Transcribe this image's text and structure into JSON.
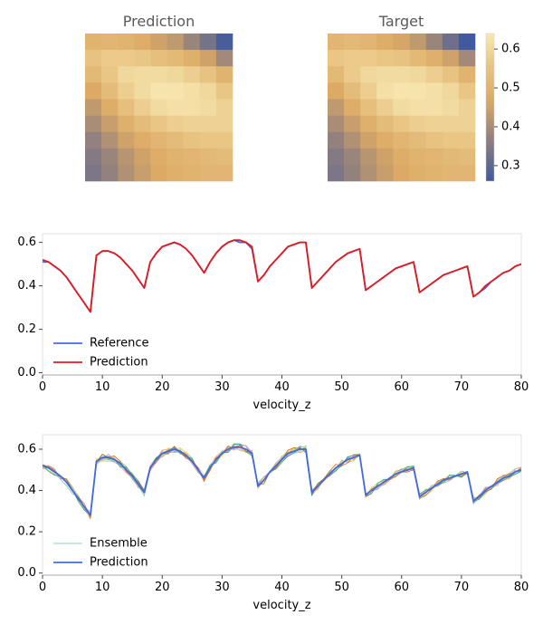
{
  "chart_data": [
    {
      "type": "heatmap",
      "title": "Prediction",
      "rows": 9,
      "cols": 9,
      "values": [
        [
          0.5,
          0.51,
          0.5,
          0.48,
          0.45,
          0.43,
          0.38,
          0.33,
          0.27
        ],
        [
          0.55,
          0.57,
          0.57,
          0.56,
          0.54,
          0.52,
          0.49,
          0.45,
          0.39
        ],
        [
          0.52,
          0.56,
          0.6,
          0.61,
          0.61,
          0.6,
          0.58,
          0.55,
          0.5
        ],
        [
          0.47,
          0.53,
          0.58,
          0.61,
          0.63,
          0.63,
          0.62,
          0.6,
          0.56
        ],
        [
          0.43,
          0.48,
          0.54,
          0.58,
          0.61,
          0.62,
          0.62,
          0.61,
          0.59
        ],
        [
          0.4,
          0.44,
          0.49,
          0.53,
          0.56,
          0.58,
          0.59,
          0.59,
          0.59
        ],
        [
          0.37,
          0.41,
          0.45,
          0.48,
          0.51,
          0.53,
          0.55,
          0.56,
          0.56
        ],
        [
          0.35,
          0.38,
          0.42,
          0.45,
          0.48,
          0.5,
          0.51,
          0.52,
          0.53
        ],
        [
          0.34,
          0.37,
          0.41,
          0.44,
          0.47,
          0.49,
          0.5,
          0.51,
          0.51
        ]
      ]
    },
    {
      "type": "heatmap",
      "title": "Target",
      "rows": 9,
      "cols": 9,
      "values": [
        [
          0.51,
          0.52,
          0.51,
          0.48,
          0.46,
          0.43,
          0.38,
          0.32,
          0.26
        ],
        [
          0.56,
          0.57,
          0.57,
          0.56,
          0.55,
          0.52,
          0.49,
          0.45,
          0.39
        ],
        [
          0.52,
          0.57,
          0.6,
          0.61,
          0.61,
          0.6,
          0.58,
          0.55,
          0.5
        ],
        [
          0.47,
          0.53,
          0.58,
          0.62,
          0.63,
          0.63,
          0.62,
          0.6,
          0.56
        ],
        [
          0.43,
          0.48,
          0.54,
          0.58,
          0.61,
          0.62,
          0.62,
          0.61,
          0.59
        ],
        [
          0.4,
          0.44,
          0.49,
          0.53,
          0.56,
          0.58,
          0.59,
          0.59,
          0.59
        ],
        [
          0.37,
          0.41,
          0.45,
          0.48,
          0.51,
          0.53,
          0.55,
          0.56,
          0.56
        ],
        [
          0.35,
          0.38,
          0.42,
          0.45,
          0.48,
          0.5,
          0.51,
          0.52,
          0.53
        ],
        [
          0.34,
          0.37,
          0.41,
          0.44,
          0.47,
          0.49,
          0.5,
          0.51,
          0.51
        ]
      ],
      "colorbar": {
        "range": [
          0.26,
          0.64
        ],
        "ticks": [
          0.3,
          0.4,
          0.5,
          0.6
        ]
      }
    },
    {
      "type": "line",
      "xlabel": "velocity_z",
      "xlim": [
        0,
        80
      ],
      "ylim": [
        -0.01,
        0.64
      ],
      "xticks": [
        0,
        10,
        20,
        30,
        40,
        50,
        60,
        70,
        80
      ],
      "yticks": [
        0.0,
        0.2,
        0.4,
        0.6
      ],
      "legend": "lower-left",
      "series": [
        {
          "name": "Reference",
          "color": "#4169e1",
          "x": [
            0,
            1,
            2,
            3,
            4,
            5,
            6,
            7,
            8,
            9,
            10,
            11,
            12,
            13,
            14,
            15,
            16,
            17,
            18,
            19,
            20,
            21,
            22,
            23,
            24,
            25,
            26,
            27,
            28,
            29,
            30,
            31,
            32,
            33,
            34,
            35,
            36,
            37,
            38,
            39,
            40,
            41,
            42,
            43,
            44,
            45,
            46,
            47,
            48,
            49,
            50,
            51,
            52,
            53,
            54,
            55,
            56,
            57,
            58,
            59,
            60,
            61,
            62,
            63,
            64,
            65,
            66,
            67,
            68,
            69,
            70,
            71,
            72,
            73,
            74,
            75,
            76,
            77,
            78,
            79,
            80
          ],
          "y": [
            0.51,
            0.51,
            0.49,
            0.47,
            0.44,
            0.4,
            0.36,
            0.32,
            0.28,
            0.54,
            0.56,
            0.56,
            0.55,
            0.53,
            0.5,
            0.47,
            0.43,
            0.39,
            0.51,
            0.55,
            0.58,
            0.59,
            0.6,
            0.59,
            0.57,
            0.54,
            0.5,
            0.46,
            0.51,
            0.55,
            0.58,
            0.6,
            0.61,
            0.6,
            0.6,
            0.57,
            0.42,
            0.45,
            0.49,
            0.52,
            0.55,
            0.58,
            0.59,
            0.6,
            0.6,
            0.39,
            0.42,
            0.45,
            0.48,
            0.51,
            0.53,
            0.55,
            0.56,
            0.57,
            0.38,
            0.4,
            0.42,
            0.44,
            0.46,
            0.48,
            0.49,
            0.5,
            0.51,
            0.37,
            0.39,
            0.41,
            0.43,
            0.45,
            0.46,
            0.47,
            0.48,
            0.49,
            0.35,
            0.37,
            0.39,
            0.42,
            0.44,
            0.46,
            0.47,
            0.49,
            0.5
          ]
        },
        {
          "name": "Prediction",
          "color": "#e31a1c",
          "x": [
            0,
            1,
            2,
            3,
            4,
            5,
            6,
            7,
            8,
            9,
            10,
            11,
            12,
            13,
            14,
            15,
            16,
            17,
            18,
            19,
            20,
            21,
            22,
            23,
            24,
            25,
            26,
            27,
            28,
            29,
            30,
            31,
            32,
            33,
            34,
            35,
            36,
            37,
            38,
            39,
            40,
            41,
            42,
            43,
            44,
            45,
            46,
            47,
            48,
            49,
            50,
            51,
            52,
            53,
            54,
            55,
            56,
            57,
            58,
            59,
            60,
            61,
            62,
            63,
            64,
            65,
            66,
            67,
            68,
            69,
            70,
            71,
            72,
            73,
            74,
            75,
            76,
            77,
            78,
            79,
            80
          ],
          "y": [
            0.52,
            0.51,
            0.49,
            0.47,
            0.44,
            0.4,
            0.36,
            0.32,
            0.28,
            0.54,
            0.56,
            0.56,
            0.55,
            0.53,
            0.5,
            0.47,
            0.43,
            0.39,
            0.51,
            0.55,
            0.58,
            0.59,
            0.6,
            0.59,
            0.57,
            0.54,
            0.5,
            0.46,
            0.51,
            0.55,
            0.58,
            0.6,
            0.61,
            0.61,
            0.6,
            0.58,
            0.42,
            0.45,
            0.49,
            0.52,
            0.55,
            0.58,
            0.59,
            0.6,
            0.6,
            0.39,
            0.42,
            0.45,
            0.48,
            0.51,
            0.53,
            0.55,
            0.56,
            0.57,
            0.38,
            0.4,
            0.42,
            0.44,
            0.46,
            0.48,
            0.49,
            0.5,
            0.51,
            0.37,
            0.39,
            0.41,
            0.43,
            0.45,
            0.46,
            0.47,
            0.48,
            0.49,
            0.35,
            0.37,
            0.4,
            0.42,
            0.44,
            0.46,
            0.47,
            0.49,
            0.5
          ]
        }
      ]
    },
    {
      "type": "line",
      "xlabel": "velocity_z",
      "xlim": [
        0,
        80
      ],
      "ylim": [
        -0.01,
        0.67
      ],
      "xticks": [
        0,
        10,
        20,
        30,
        40,
        50,
        60,
        70,
        80
      ],
      "yticks": [
        0.0,
        0.2,
        0.4,
        0.6
      ],
      "legend": "lower-left",
      "ensemble": {
        "name": "Ensemble",
        "members": 10,
        "colors": [
          "#66c2a5",
          "#fc8d62",
          "#8da0cb",
          "#e78ac3",
          "#a6d854",
          "#ffd92f",
          "#e5c494",
          "#b3b3b3",
          "#1b9e77",
          "#d95f02"
        ]
      },
      "series": [
        {
          "name": "Prediction",
          "color": "#4169e1",
          "x": [
            0,
            1,
            2,
            3,
            4,
            5,
            6,
            7,
            8,
            9,
            10,
            11,
            12,
            13,
            14,
            15,
            16,
            17,
            18,
            19,
            20,
            21,
            22,
            23,
            24,
            25,
            26,
            27,
            28,
            29,
            30,
            31,
            32,
            33,
            34,
            35,
            36,
            37,
            38,
            39,
            40,
            41,
            42,
            43,
            44,
            45,
            46,
            47,
            48,
            49,
            50,
            51,
            52,
            53,
            54,
            55,
            56,
            57,
            58,
            59,
            60,
            61,
            62,
            63,
            64,
            65,
            66,
            67,
            68,
            69,
            70,
            71,
            72,
            73,
            74,
            75,
            76,
            77,
            78,
            79,
            80
          ],
          "y": [
            0.52,
            0.51,
            0.49,
            0.47,
            0.44,
            0.4,
            0.36,
            0.32,
            0.28,
            0.54,
            0.56,
            0.56,
            0.55,
            0.53,
            0.5,
            0.47,
            0.43,
            0.39,
            0.51,
            0.55,
            0.58,
            0.59,
            0.6,
            0.59,
            0.57,
            0.54,
            0.5,
            0.46,
            0.51,
            0.55,
            0.58,
            0.6,
            0.61,
            0.61,
            0.6,
            0.58,
            0.42,
            0.45,
            0.49,
            0.52,
            0.55,
            0.58,
            0.59,
            0.6,
            0.6,
            0.39,
            0.42,
            0.45,
            0.48,
            0.51,
            0.53,
            0.55,
            0.56,
            0.57,
            0.38,
            0.4,
            0.42,
            0.44,
            0.46,
            0.48,
            0.49,
            0.5,
            0.51,
            0.37,
            0.39,
            0.41,
            0.43,
            0.45,
            0.46,
            0.47,
            0.48,
            0.49,
            0.35,
            0.37,
            0.4,
            0.42,
            0.44,
            0.46,
            0.47,
            0.49,
            0.5
          ]
        }
      ]
    }
  ]
}
